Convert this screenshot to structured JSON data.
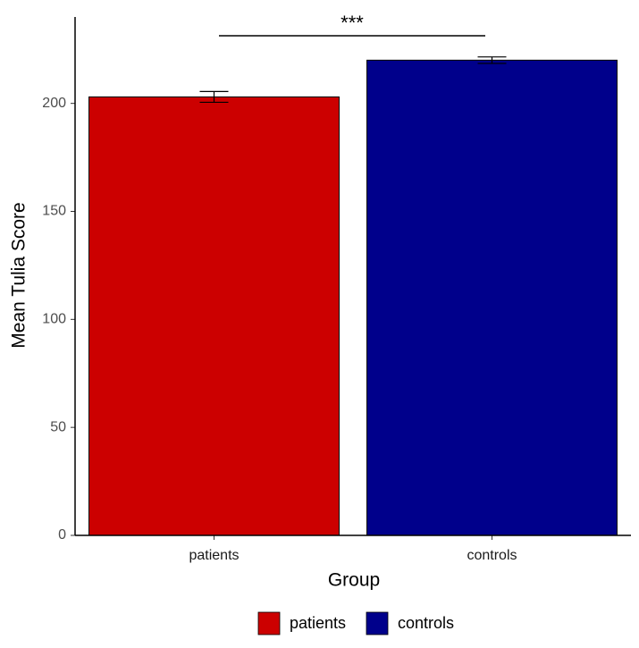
{
  "chart_data": {
    "type": "bar",
    "x_label": "Group",
    "y_label": "Mean Tulia Score",
    "annotation": "***",
    "categories": [
      "patients",
      "controls"
    ],
    "values": [
      203,
      220
    ],
    "errors": [
      2.5,
      1.5
    ],
    "colors": [
      "#cc0000",
      "#00008b"
    ],
    "ylim": [
      0,
      240
    ],
    "yticks": [
      0,
      50,
      100,
      150,
      200
    ],
    "grid": false,
    "legend": "bottom"
  }
}
